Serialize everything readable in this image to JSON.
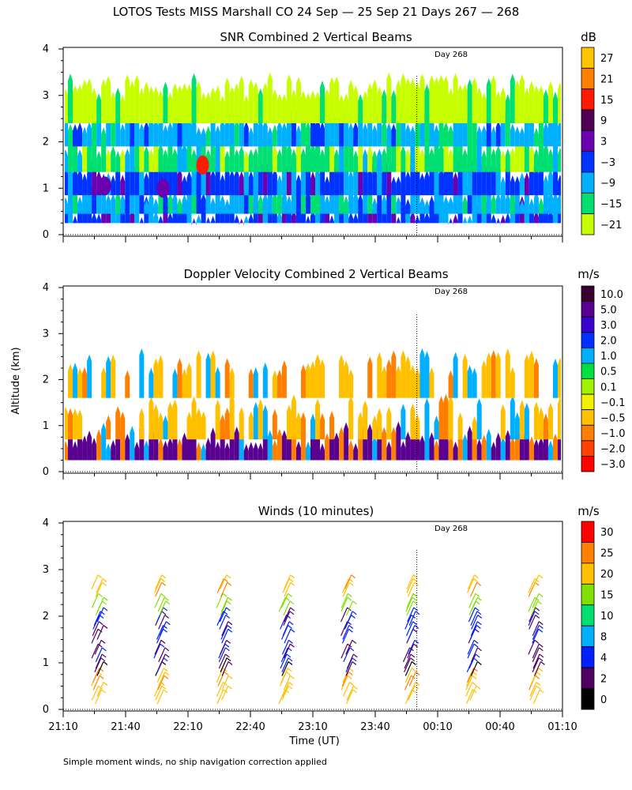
{
  "title": "LOTOS Tests MISS Marshall CO  24 Sep — 25 Sep 21 Days 267 — 268",
  "footnote": "Simple moment winds, no ship navigation correction applied",
  "chart_data": [
    {
      "type": "heatmap",
      "title": "SNR Combined 2 Vertical Beams",
      "ylabel": "",
      "ylim": [
        0,
        4
      ],
      "y_ticks": [
        "0",
        "1",
        "2",
        "3",
        "4"
      ],
      "units": "dB",
      "colorbar_labels": [
        "27",
        "21",
        "15",
        "9",
        "3",
        "−3",
        "−9",
        "−15",
        "−21"
      ],
      "colorbar_colors": [
        "#ffc400",
        "#ff8000",
        "#ff1a00",
        "#500050",
        "#6a00b0",
        "#0033ff",
        "#00b0ff",
        "#00e070",
        "#c8ff00"
      ],
      "marker_label": "Day 268",
      "profile": [
        {
          "range": [
            0.25,
            0.45
          ],
          "value": -3
        },
        {
          "range": [
            0.45,
            0.85
          ],
          "value": -9
        },
        {
          "range": [
            0.85,
            1.35
          ],
          "value": -3
        },
        {
          "range": [
            1.35,
            1.9
          ],
          "value": -15
        },
        {
          "range": [
            1.9,
            2.4
          ],
          "value": -9
        },
        {
          "range": [
            2.4,
            3.1
          ],
          "value": -21
        }
      ],
      "hotspots": [
        {
          "time": "21:30",
          "alt": 1.05,
          "value": 3
        },
        {
          "time": "21:58",
          "alt": 1.0,
          "value": 3
        },
        {
          "time": "22:17",
          "alt": 1.5,
          "value": 15
        }
      ]
    },
    {
      "type": "heatmap",
      "title": "Doppler Velocity Combined 2 Vertical Beams",
      "ylabel": "Altitude (km)",
      "ylim": [
        0,
        4
      ],
      "y_ticks": [
        "0",
        "1",
        "2",
        "3",
        "4"
      ],
      "units": "m/s",
      "colorbar_labels": [
        "10.0",
        "5.0",
        "3.0",
        "2.0",
        "1.0",
        "0.5",
        "0.1",
        "−0.1",
        "−0.5",
        "−1.0",
        "−2.0",
        "−3.0"
      ],
      "colorbar_colors": [
        "#3a0030",
        "#5a0090",
        "#3a00d0",
        "#0030ff",
        "#00b0ff",
        "#00e040",
        "#a0f000",
        "#f0f000",
        "#ffc000",
        "#ff8000",
        "#ff4000",
        "#ff0000"
      ],
      "marker_label": "Day 268",
      "profile": [
        {
          "range": [
            0.25,
            0.7
          ],
          "value": 5.0
        },
        {
          "range": [
            0.7,
            1.3
          ],
          "value": -0.5
        },
        {
          "range": [
            1.6,
            2.3
          ],
          "value": -0.5
        }
      ]
    },
    {
      "type": "scatter",
      "title": "Winds (10 minutes)",
      "ylabel": "",
      "xlabel": "Time (UT)",
      "ylim": [
        0,
        4
      ],
      "y_ticks": [
        "0",
        "1",
        "2",
        "3",
        "4"
      ],
      "x_ticks": [
        "21:10",
        "21:40",
        "22:10",
        "22:40",
        "23:10",
        "23:40",
        "00:10",
        "00:40",
        "01:10"
      ],
      "units": "m/s",
      "colorbar_labels": [
        "30",
        "25",
        "20",
        "15",
        "10",
        "8",
        "4",
        "2",
        "0"
      ],
      "colorbar_colors": [
        "#ff0000",
        "#ff8000",
        "#ffc000",
        "#80e000",
        "#00e070",
        "#00b0ff",
        "#0020ff",
        "#500060",
        "#000000"
      ],
      "marker_label": "Day 268",
      "profiles_times": [
        "21:25",
        "21:55",
        "22:25",
        "22:55",
        "23:25",
        "23:55",
        "00:25",
        "00:55"
      ],
      "profile_levels": [
        {
          "alt": 0.2,
          "speed": 20
        },
        {
          "alt": 0.5,
          "speed": 22
        },
        {
          "alt": 0.8,
          "speed": 2
        },
        {
          "alt": 1.1,
          "speed": 3
        },
        {
          "alt": 1.5,
          "speed": 4
        },
        {
          "alt": 1.8,
          "speed": 4
        },
        {
          "alt": 2.1,
          "speed": 15
        },
        {
          "alt": 2.5,
          "speed": 22
        }
      ]
    }
  ]
}
